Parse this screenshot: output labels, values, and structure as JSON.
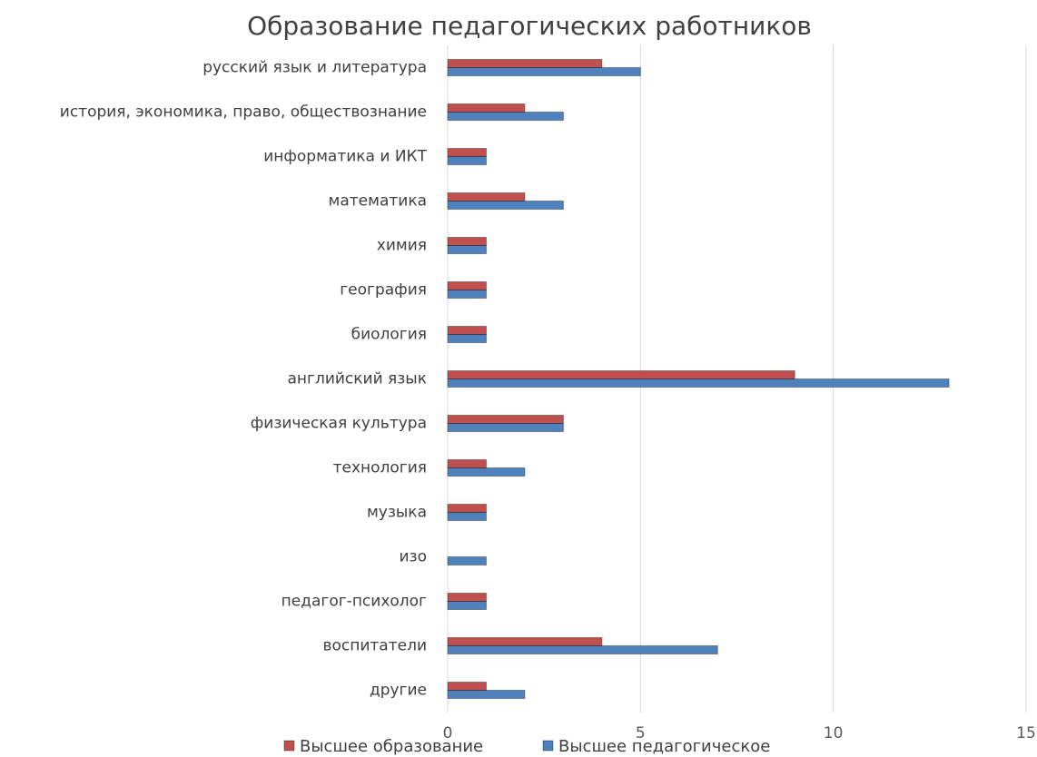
{
  "chart_data": {
    "type": "barh",
    "title": "Образование педагогических работников",
    "categories": [
      "русский язык и литература",
      "история, экономика, право, обществознание",
      "информатика и ИКТ",
      "математика",
      "химия",
      "география",
      "биология",
      "английский язык",
      "физическая культура",
      "технология",
      "музыка",
      "изо",
      "педагог-психолог",
      "воспитатели",
      "другие"
    ],
    "series": [
      {
        "name": "Высшее образование",
        "color": "#c0504d",
        "values": [
          4,
          2,
          1,
          2,
          1,
          1,
          1,
          9,
          3,
          1,
          1,
          0,
          1,
          4,
          1
        ]
      },
      {
        "name": "Высшее педагогическое",
        "color": "#4f81bd",
        "values": [
          5,
          3,
          1,
          3,
          1,
          1,
          1,
          13,
          3,
          2,
          1,
          1,
          1,
          7,
          2
        ]
      }
    ],
    "xlim": [
      0,
      15
    ],
    "xticks": [
      0,
      5,
      10,
      15
    ],
    "grid": true,
    "legend": "bottom"
  }
}
